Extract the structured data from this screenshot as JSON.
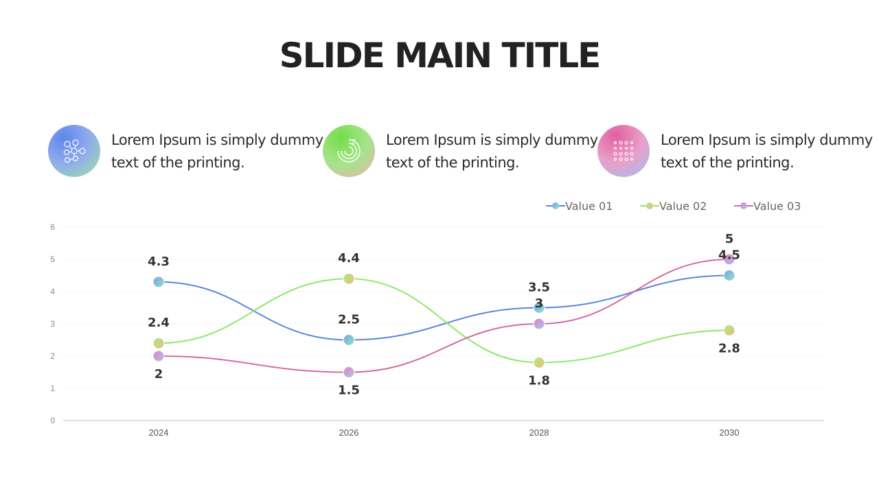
{
  "slide": {
    "title": "SLIDE MAIN TITLE"
  },
  "features": [
    {
      "icon": "network-nodes-icon",
      "text": "Lorem Ipsum is simply dummy text of the printing."
    },
    {
      "icon": "concentric-arcs-icon",
      "text": "Lorem Ipsum is simply dummy text of the printing."
    },
    {
      "icon": "dot-grid-icon",
      "text": "Lorem Ipsum is simply dummy text of the printing."
    }
  ],
  "chart_data": {
    "type": "line",
    "x": [
      "2024",
      "2026",
      "2028",
      "2030"
    ],
    "ylim": [
      0,
      6
    ],
    "yticks": [
      0,
      1,
      2,
      3,
      4,
      5,
      6
    ],
    "grid": true,
    "legend_position": "top-right",
    "series": [
      {
        "name": "Value 01",
        "color": "#5b86db",
        "values": [
          4.3,
          2.5,
          3.5,
          4.5
        ],
        "labels": [
          "4.3",
          "2.5",
          "3.5",
          "4.5"
        ]
      },
      {
        "name": "Value 02",
        "color": "#8ee86a",
        "values": [
          2.4,
          4.4,
          1.8,
          2.8
        ],
        "labels": [
          "2.4",
          "4.4",
          "1.8",
          "2.8"
        ]
      },
      {
        "name": "Value 03",
        "color": "#d46aa3",
        "values": [
          2,
          1.5,
          3,
          5
        ],
        "labels": [
          "2",
          "1.5",
          "3",
          "5"
        ]
      }
    ]
  }
}
